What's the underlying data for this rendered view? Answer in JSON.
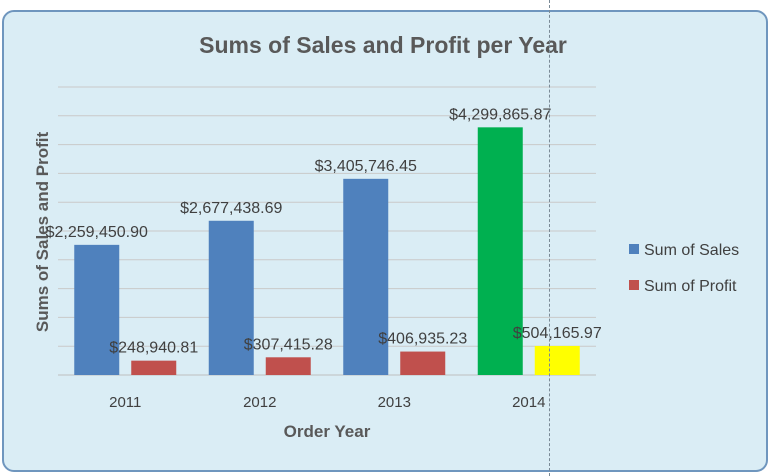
{
  "chart_data": {
    "type": "bar",
    "title": "Sums of Sales and Profit per Year",
    "xlabel": "Order Year",
    "ylabel": "Sums of Sales and Profit",
    "categories": [
      "2011",
      "2012",
      "2013",
      "2014"
    ],
    "ylim": [
      0,
      5000000
    ],
    "grid": true,
    "legend_position": "right",
    "series": [
      {
        "name": "Sum of Sales",
        "color": "#4f81bd",
        "values": [
          2259450.9,
          2677438.69,
          3405746.45,
          4299865.87
        ],
        "labels": [
          "$2,259,450.90",
          "$2,677,438.69",
          "$3,405,746.45",
          "$4,299,865.87"
        ],
        "point_colors": [
          "#4f81bd",
          "#4f81bd",
          "#4f81bd",
          "#00b050"
        ]
      },
      {
        "name": "Sum of Profit",
        "color": "#c0504d",
        "values": [
          248940.81,
          307415.28,
          406935.23,
          504165.97
        ],
        "labels": [
          "$248,940.81",
          "$307,415.28",
          "$406,935.23",
          "$504,165.97"
        ],
        "point_colors": [
          "#c0504d",
          "#c0504d",
          "#c0504d",
          "#ffff00"
        ]
      }
    ]
  }
}
